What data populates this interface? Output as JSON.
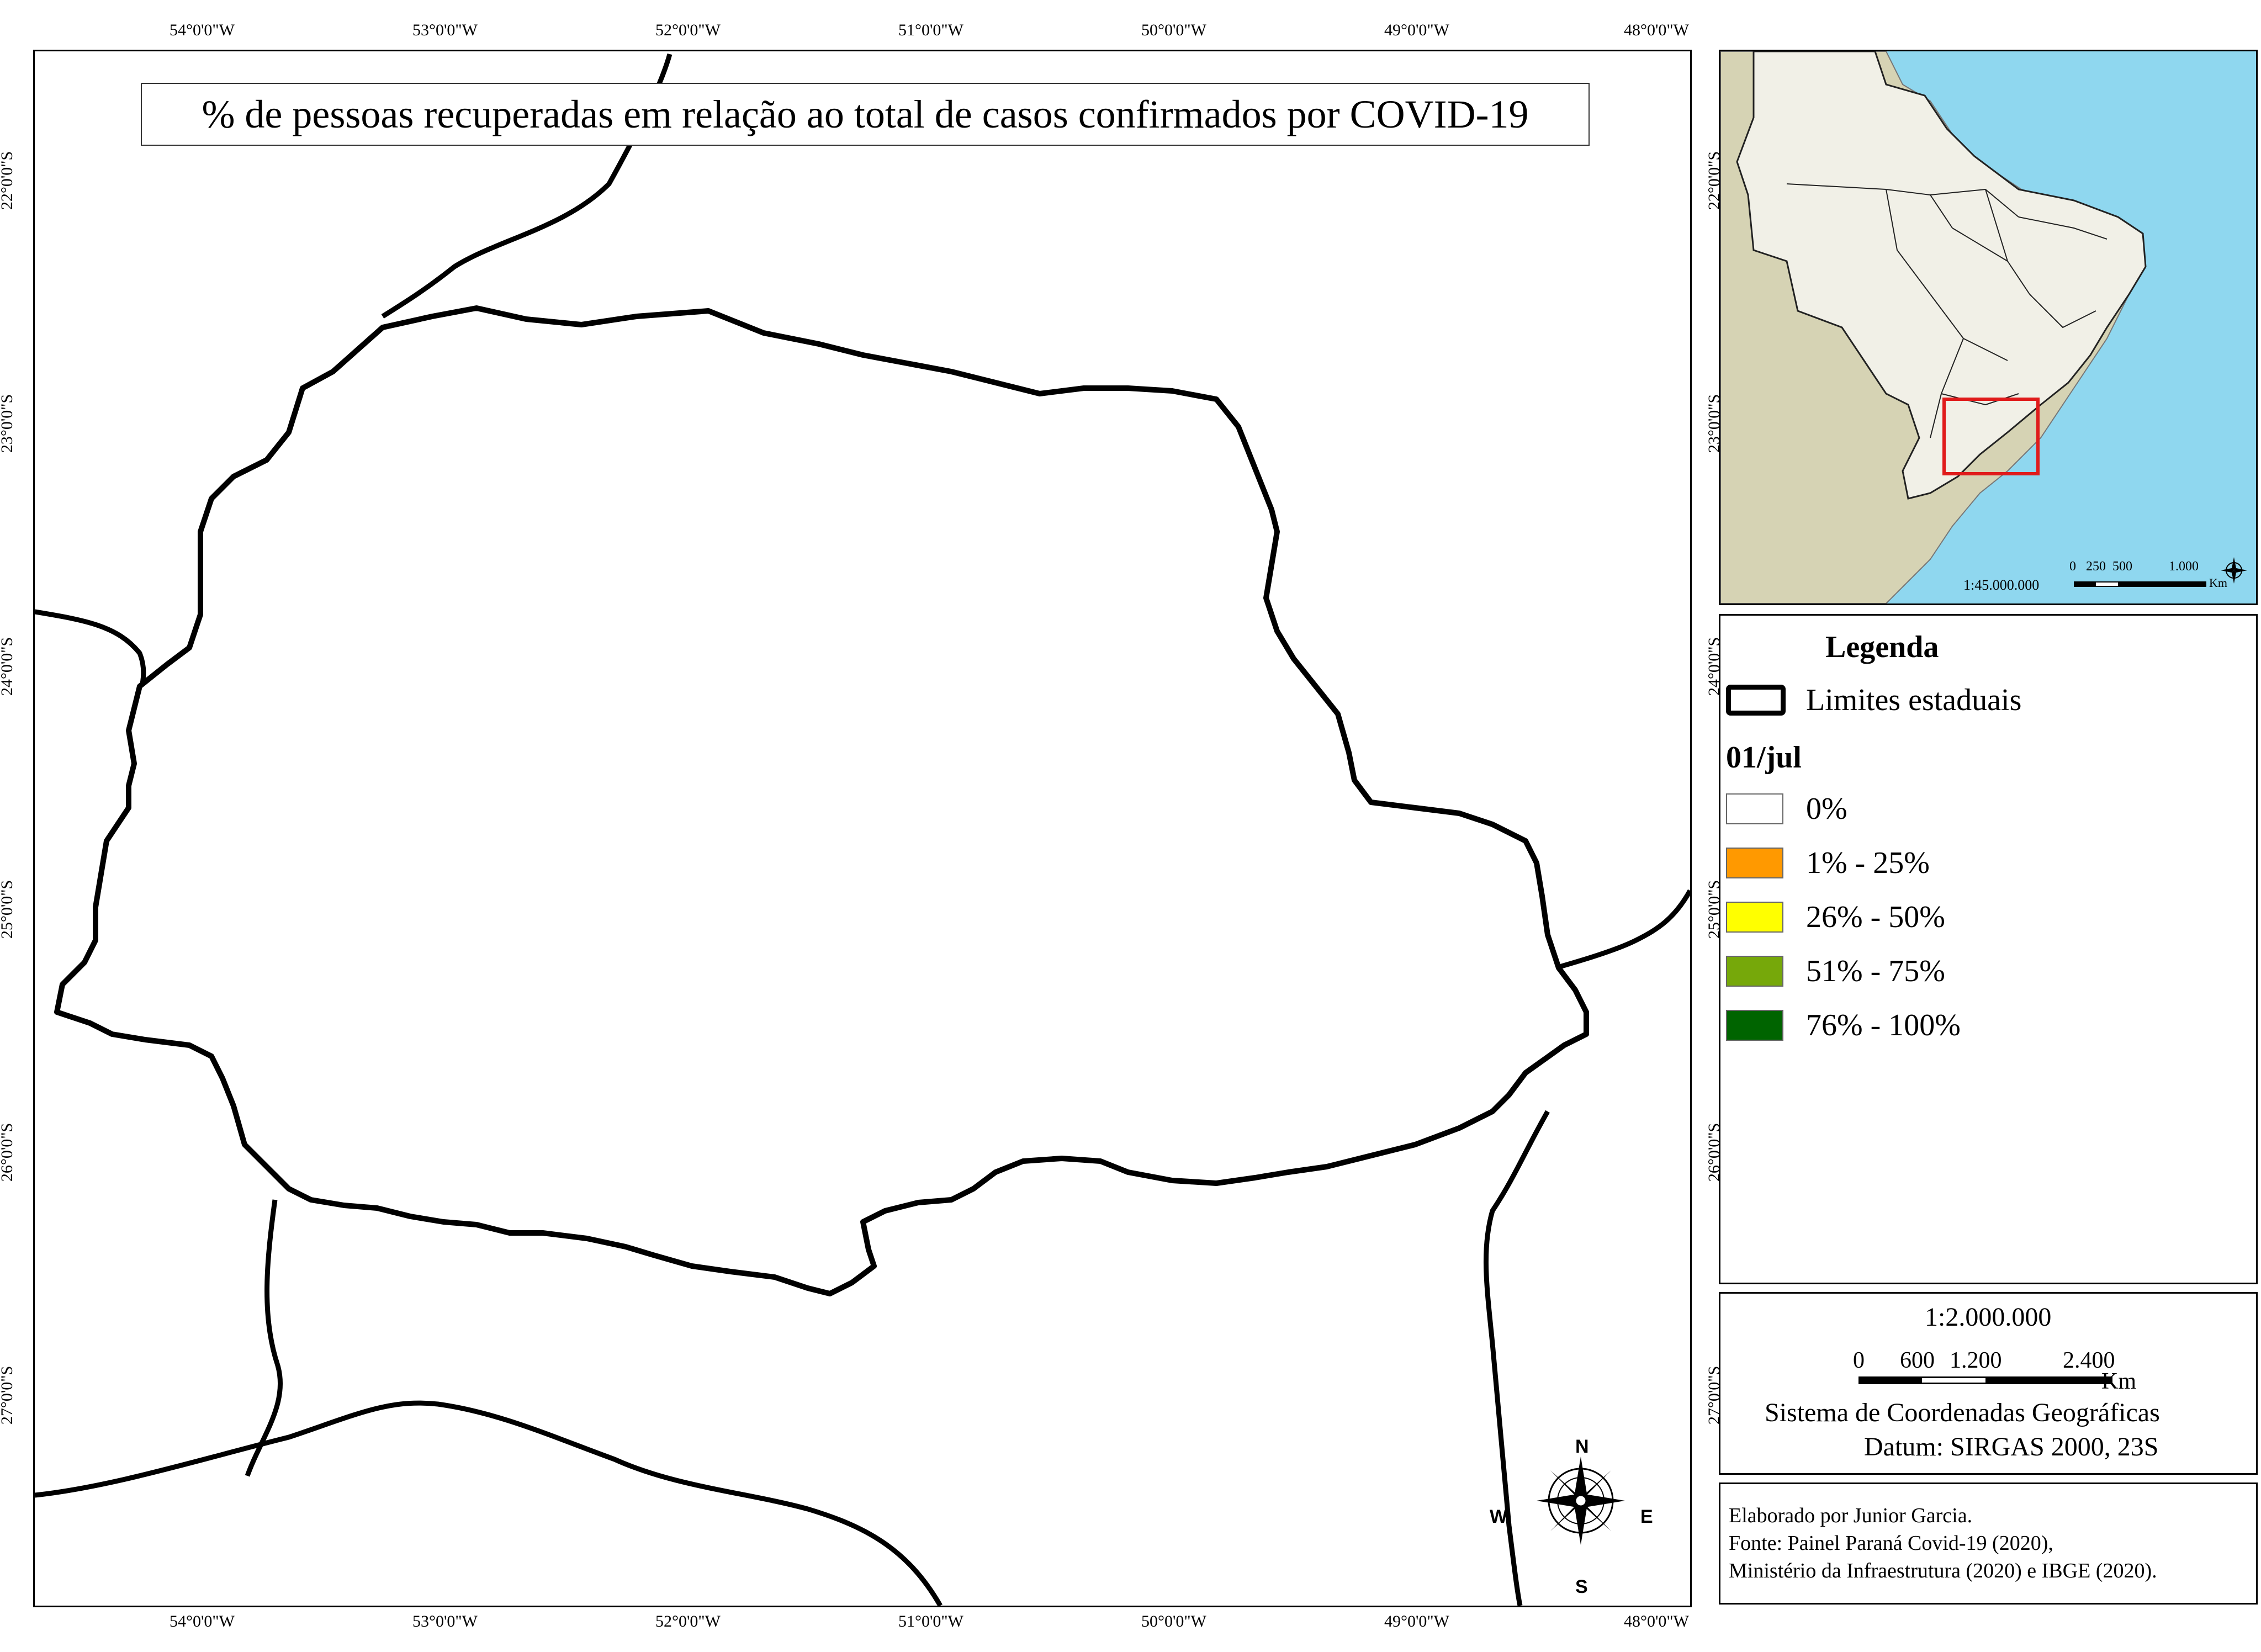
{
  "map": {
    "title": "% de pessoas recuperadas em relação ao total de casos confirmados por COVID-19",
    "lon_ticks": [
      "54°0'0\"W",
      "53°0'0\"W",
      "52°0'0\"W",
      "51°0'0\"W",
      "50°0'0\"W",
      "49°0'0\"W",
      "48°0'0\"W"
    ],
    "lat_ticks": [
      "22°0'0\"S",
      "23°0'0\"S",
      "24°0'0\"S",
      "25°0'0\"S",
      "26°0'0\"S",
      "27°0'0\"S"
    ],
    "north_arrow": {
      "n": "N",
      "s": "S",
      "e": "E",
      "w": "W"
    }
  },
  "inset": {
    "scale": "1:45.000.000",
    "scalebar_labels": [
      "0",
      "250",
      "500",
      "1.000"
    ],
    "unit": "Km",
    "colors": {
      "ocean": "#8fd7ef",
      "brazil": "#f1f0e7",
      "neighbors": "#d6d3b4",
      "highlight": "#e01b1b"
    }
  },
  "legend": {
    "title": "Legenda",
    "boundary_label": "Limites estaduais",
    "date": "01/jul",
    "classes": [
      {
        "label": "0%",
        "color": "#ffffff"
      },
      {
        "label": "1% - 25%",
        "color": "#ff9900"
      },
      {
        "label": "26% - 50%",
        "color": "#ffff00"
      },
      {
        "label": "51% - 75%",
        "color": "#76a80a"
      },
      {
        "label": "76% - 100%",
        "color": "#006400"
      }
    ]
  },
  "scale_panel": {
    "ratio": "1:2.000.000",
    "bar_labels": [
      "0",
      "600",
      "1.200",
      "2.400"
    ],
    "unit": "Km",
    "crs": "Sistema de Coordenadas Geográficas",
    "datum": "Datum: SIRGAS 2000, 23S"
  },
  "credits": {
    "author": "Elaborado por Junior Garcia.",
    "source1": "Fonte: Painel Paraná Covid-19 (2020),",
    "source2": "Ministério da Infraestrutura (2020) e IBGE (2020)."
  }
}
